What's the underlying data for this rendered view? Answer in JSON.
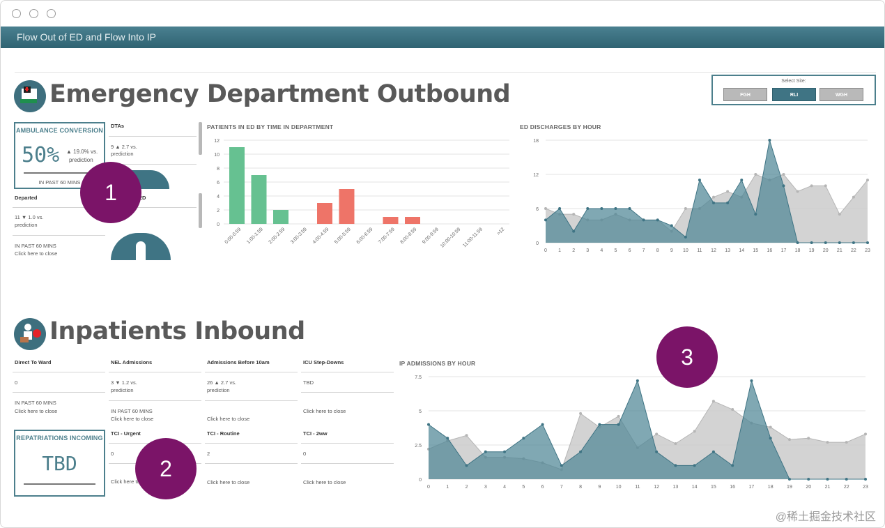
{
  "window": {
    "title": "Flow Out of ED and Flow Into IP"
  },
  "ed": {
    "title": "Emergency Department Outbound",
    "ambulance": {
      "title": "AMBULANCE CONVERSION",
      "value": "50%",
      "delta": "▲ 19.0% vs.",
      "delta2": "prediction",
      "footer": "IN PAST 60 MINS"
    },
    "dtas": {
      "title": "DTAs",
      "value": "9 ▲ 2.7 vs.",
      "value2": "prediction"
    },
    "departed": {
      "title": "Departed",
      "value": "11 ▼ 1.0 vs.",
      "value2": "prediction",
      "footer1": "IN PAST 60 MINS",
      "footer2": "Click here to close"
    },
    "hidden_label": "ED"
  },
  "site": {
    "label": "Select Site:",
    "options": [
      "FGH",
      "RLI",
      "WGH"
    ],
    "selected": "RLI"
  },
  "ip": {
    "title": "Inpatients Inbound",
    "tiles": [
      {
        "title": "Direct To Ward",
        "value": "0",
        "footer1": "IN PAST 60 MINS",
        "footer2": "Click here to close"
      },
      {
        "title": "NEL Admissions",
        "value": "3 ▼ 1.2 vs.",
        "value2": "prediction",
        "footer1": "IN PAST 60 MINS",
        "footer2": "Click here to close"
      },
      {
        "title": "Admissions Before 10am",
        "value": "26 ▲ 2.7 vs.",
        "value2": "prediction",
        "footer2": "Click here to close"
      },
      {
        "title": "ICU Step-Downs",
        "value": "TBD",
        "footer2": "Click here to close"
      },
      {
        "title": "TCI - Urgent",
        "value": "0",
        "footer2": "Click here to close"
      },
      {
        "title": "TCI - Routine",
        "value": "2",
        "footer2": "Click here to close"
      },
      {
        "title": "TCI - 2ww",
        "value": "0",
        "footer2": "Click here to close"
      }
    ],
    "repatriations": {
      "title": "REPATRIATIONS INCOMING",
      "value": "TBD"
    }
  },
  "markers": [
    "1",
    "2",
    "3"
  ],
  "watermark": "@稀土掘金技术社区",
  "colors": {
    "teal": "#4c7f8c",
    "bar_green": "#66c191",
    "bar_red": "#ee7468",
    "area_grey": "#c9c9c9"
  },
  "chart_data": [
    {
      "type": "bar",
      "title": "PATIENTS IN ED BY TIME IN DEPARTMENT",
      "categories": [
        "0:00-0:59",
        "1:00-1:59",
        "2:00-2:59",
        "3:00-3:59",
        "4:00-4:59",
        "5:00-5:59",
        "6:00-6:59",
        "7:00-7:59",
        "8:00-8:59",
        "9:00-9:59",
        "10:00-10:59",
        "11:00-11:59",
        ">12"
      ],
      "values": [
        11,
        7,
        2,
        0,
        3,
        5,
        0,
        1,
        1,
        0,
        0,
        0,
        0
      ],
      "bar_colors": [
        "#66c191",
        "#66c191",
        "#66c191",
        "#66c191",
        "#ee7468",
        "#ee7468",
        "#ee7468",
        "#ee7468",
        "#ee7468",
        "#ee7468",
        "#ee7468",
        "#ee7468",
        "#ee7468"
      ],
      "ylim": [
        0,
        12
      ],
      "yticks": [
        0,
        2,
        4,
        6,
        8,
        10,
        12
      ]
    },
    {
      "type": "area",
      "title": "ED DISCHARGES BY HOUR",
      "x": [
        0,
        1,
        2,
        3,
        4,
        5,
        6,
        7,
        8,
        9,
        10,
        11,
        12,
        13,
        14,
        15,
        16,
        17,
        18,
        19,
        20,
        21,
        22,
        23
      ],
      "series": [
        {
          "values": [
            6,
            5,
            5,
            4,
            4,
            5,
            4,
            4,
            4,
            2,
            6,
            6,
            8,
            9,
            8,
            12,
            11,
            12,
            9,
            10,
            10,
            5,
            8,
            11
          ]
        },
        {
          "values": [
            4,
            6,
            2,
            6,
            6,
            6,
            6,
            4,
            4,
            3,
            1,
            11,
            7,
            7,
            11,
            5,
            18,
            10,
            0,
            0,
            0,
            0,
            0,
            0
          ]
        }
      ],
      "ylim": [
        0,
        18
      ],
      "yticks": [
        0,
        6,
        12,
        18
      ]
    },
    {
      "type": "area",
      "title": "IP ADMISSIONS BY HOUR",
      "x": [
        0,
        1,
        2,
        3,
        4,
        5,
        6,
        7,
        8,
        9,
        10,
        11,
        12,
        13,
        14,
        15,
        16,
        17,
        18,
        19,
        20,
        21,
        22,
        23
      ],
      "series": [
        {
          "values": [
            2.2,
            2.8,
            3.2,
            1.6,
            1.6,
            1.5,
            1.2,
            0.7,
            4.8,
            3.8,
            4.6,
            2.3,
            3.3,
            2.6,
            3.5,
            5.7,
            5.1,
            4.1,
            3.8,
            2.9,
            3.0,
            2.7,
            2.7,
            3.3
          ]
        },
        {
          "values": [
            4,
            3,
            1,
            2,
            2,
            3,
            4,
            1,
            2,
            4,
            4,
            7.2,
            2,
            1,
            1,
            2,
            1,
            7.2,
            3,
            0,
            0,
            0,
            0,
            0
          ]
        }
      ],
      "ylim": [
        0,
        7.5
      ],
      "yticks": [
        "0",
        "2.5",
        "5",
        "7.5"
      ]
    }
  ]
}
